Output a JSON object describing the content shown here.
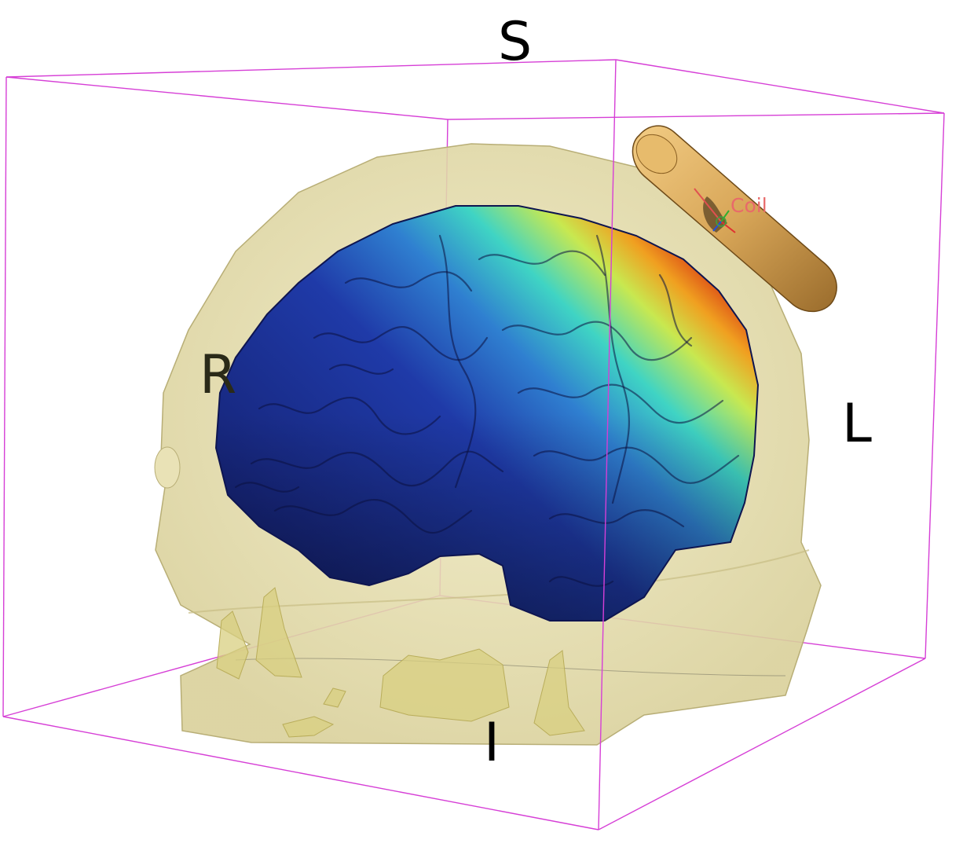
{
  "orientation_labels": {
    "superior": "S",
    "inferior": "I",
    "right": "R",
    "left": "L"
  },
  "coil": {
    "label": "Coil"
  },
  "colors": {
    "bounding_box": "#d63fd6",
    "head": "#e6dfa8",
    "coil": "#d9a95c",
    "coil_label": "#e86a6a",
    "field_low": "#1c2a8c",
    "field_mid": "#38d3c8",
    "field_high": "#d82c14"
  }
}
